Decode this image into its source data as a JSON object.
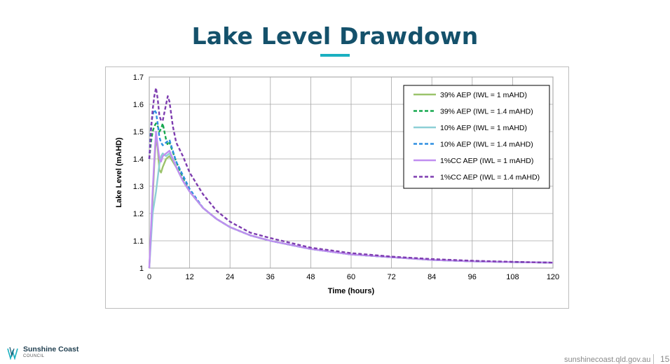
{
  "slide": {
    "title": "Lake Level Drawdown",
    "logo_name": "Sunshine Coast",
    "logo_sub": "COUNCIL",
    "url": "sunshinecoast.qld.gov.au",
    "page_number": "15"
  },
  "colors": {
    "title": "#14516b",
    "accent": "#1ab0c0"
  },
  "chart_data": {
    "type": "line",
    "xlabel": "Time (hours)",
    "ylabel": "Lake Level (mAHD)",
    "xlim": [
      0,
      120
    ],
    "ylim": [
      1,
      1.7
    ],
    "xticks": [
      "0",
      "12",
      "24",
      "36",
      "48",
      "60",
      "72",
      "84",
      "96",
      "108",
      "120"
    ],
    "yticks": [
      "1",
      "1.1",
      "1.2",
      "1.3",
      "1.4",
      "1.5",
      "1.6",
      "1.7"
    ],
    "grid": true,
    "legend_position": "top-right",
    "series": [
      {
        "name": "39% AEP (IWL = 1 mAHD)",
        "color": "#9bc36b",
        "dash": "solid",
        "x": [
          0,
          0.5,
          1,
          1.5,
          2,
          2.5,
          3,
          3.5,
          4,
          5,
          6,
          8,
          10,
          12,
          16,
          20,
          24,
          30,
          36,
          48,
          60,
          72,
          84,
          96,
          108,
          120
        ],
        "y": [
          1.0,
          1.12,
          1.25,
          1.38,
          1.48,
          1.44,
          1.36,
          1.35,
          1.37,
          1.4,
          1.41,
          1.37,
          1.32,
          1.28,
          1.22,
          1.18,
          1.15,
          1.12,
          1.1,
          1.07,
          1.05,
          1.04,
          1.03,
          1.025,
          1.022,
          1.02
        ]
      },
      {
        "name": "39% AEP (IWL = 1.4 mAHD)",
        "color": "#16a84f",
        "dash": "dashed",
        "x": [
          0,
          0.5,
          1,
          1.5,
          2,
          2.5,
          3,
          3.5,
          4,
          4.5,
          5,
          5.5,
          6,
          8,
          10,
          12,
          16,
          20,
          24,
          30,
          36,
          48,
          60,
          72,
          84,
          96,
          108,
          120
        ],
        "y": [
          1.4,
          1.46,
          1.5,
          1.52,
          1.53,
          1.52,
          1.5,
          1.51,
          1.53,
          1.5,
          1.47,
          1.45,
          1.46,
          1.39,
          1.33,
          1.28,
          1.22,
          1.18,
          1.15,
          1.12,
          1.1,
          1.07,
          1.05,
          1.04,
          1.03,
          1.025,
          1.022,
          1.02
        ]
      },
      {
        "name": "10% AEP (IWL = 1 mAHD)",
        "color": "#8dcfd6",
        "dash": "solid",
        "x": [
          0,
          0.5,
          1,
          1.5,
          2,
          2.5,
          3,
          3.5,
          4,
          5,
          6,
          7,
          8,
          10,
          12,
          16,
          20,
          24,
          30,
          36,
          48,
          60,
          72,
          84,
          96,
          108,
          120
        ],
        "y": [
          1.0,
          1.1,
          1.2,
          1.24,
          1.28,
          1.33,
          1.38,
          1.41,
          1.42,
          1.41,
          1.42,
          1.4,
          1.37,
          1.32,
          1.28,
          1.22,
          1.18,
          1.15,
          1.12,
          1.1,
          1.07,
          1.05,
          1.04,
          1.03,
          1.025,
          1.022,
          1.02
        ]
      },
      {
        "name": "10% AEP (IWL = 1.4 mAHD)",
        "color": "#2f8fe0",
        "dash": "dashed",
        "x": [
          0,
          0.5,
          1,
          1.5,
          2,
          2.5,
          3,
          3.5,
          4,
          5,
          6,
          7,
          8,
          10,
          12,
          16,
          20,
          24,
          30,
          36,
          48,
          60,
          72,
          84,
          96,
          108,
          120
        ],
        "y": [
          1.4,
          1.52,
          1.56,
          1.58,
          1.57,
          1.53,
          1.48,
          1.46,
          1.45,
          1.46,
          1.47,
          1.43,
          1.39,
          1.34,
          1.29,
          1.22,
          1.18,
          1.15,
          1.12,
          1.1,
          1.07,
          1.05,
          1.04,
          1.03,
          1.025,
          1.022,
          1.02
        ]
      },
      {
        "name": "1%CC AEP (IWL = 1 mAHD)",
        "color": "#c08ef0",
        "dash": "solid",
        "x": [
          0,
          0.5,
          1,
          1.5,
          2,
          2.5,
          3,
          3.5,
          4,
          5,
          6,
          7,
          8,
          10,
          12,
          16,
          20,
          24,
          30,
          36,
          48,
          60,
          72,
          84,
          96,
          108,
          120
        ],
        "y": [
          1.0,
          1.14,
          1.28,
          1.4,
          1.5,
          1.45,
          1.4,
          1.39,
          1.41,
          1.42,
          1.43,
          1.4,
          1.37,
          1.32,
          1.28,
          1.22,
          1.18,
          1.15,
          1.12,
          1.1,
          1.07,
          1.05,
          1.04,
          1.03,
          1.025,
          1.022,
          1.02
        ]
      },
      {
        "name": "1%CC AEP (IWL = 1.4 mAHD)",
        "color": "#7e3db0",
        "dash": "dashed",
        "x": [
          0,
          0.5,
          1,
          1.5,
          2,
          2.5,
          3,
          3.5,
          4,
          4.5,
          5,
          5.5,
          6,
          7,
          8,
          10,
          12,
          16,
          20,
          24,
          30,
          36,
          48,
          60,
          72,
          84,
          96,
          108,
          120
        ],
        "y": [
          1.4,
          1.5,
          1.58,
          1.63,
          1.66,
          1.62,
          1.56,
          1.54,
          1.54,
          1.57,
          1.6,
          1.63,
          1.61,
          1.52,
          1.46,
          1.41,
          1.35,
          1.27,
          1.21,
          1.17,
          1.13,
          1.11,
          1.075,
          1.055,
          1.042,
          1.033,
          1.027,
          1.023,
          1.02
        ]
      }
    ]
  }
}
